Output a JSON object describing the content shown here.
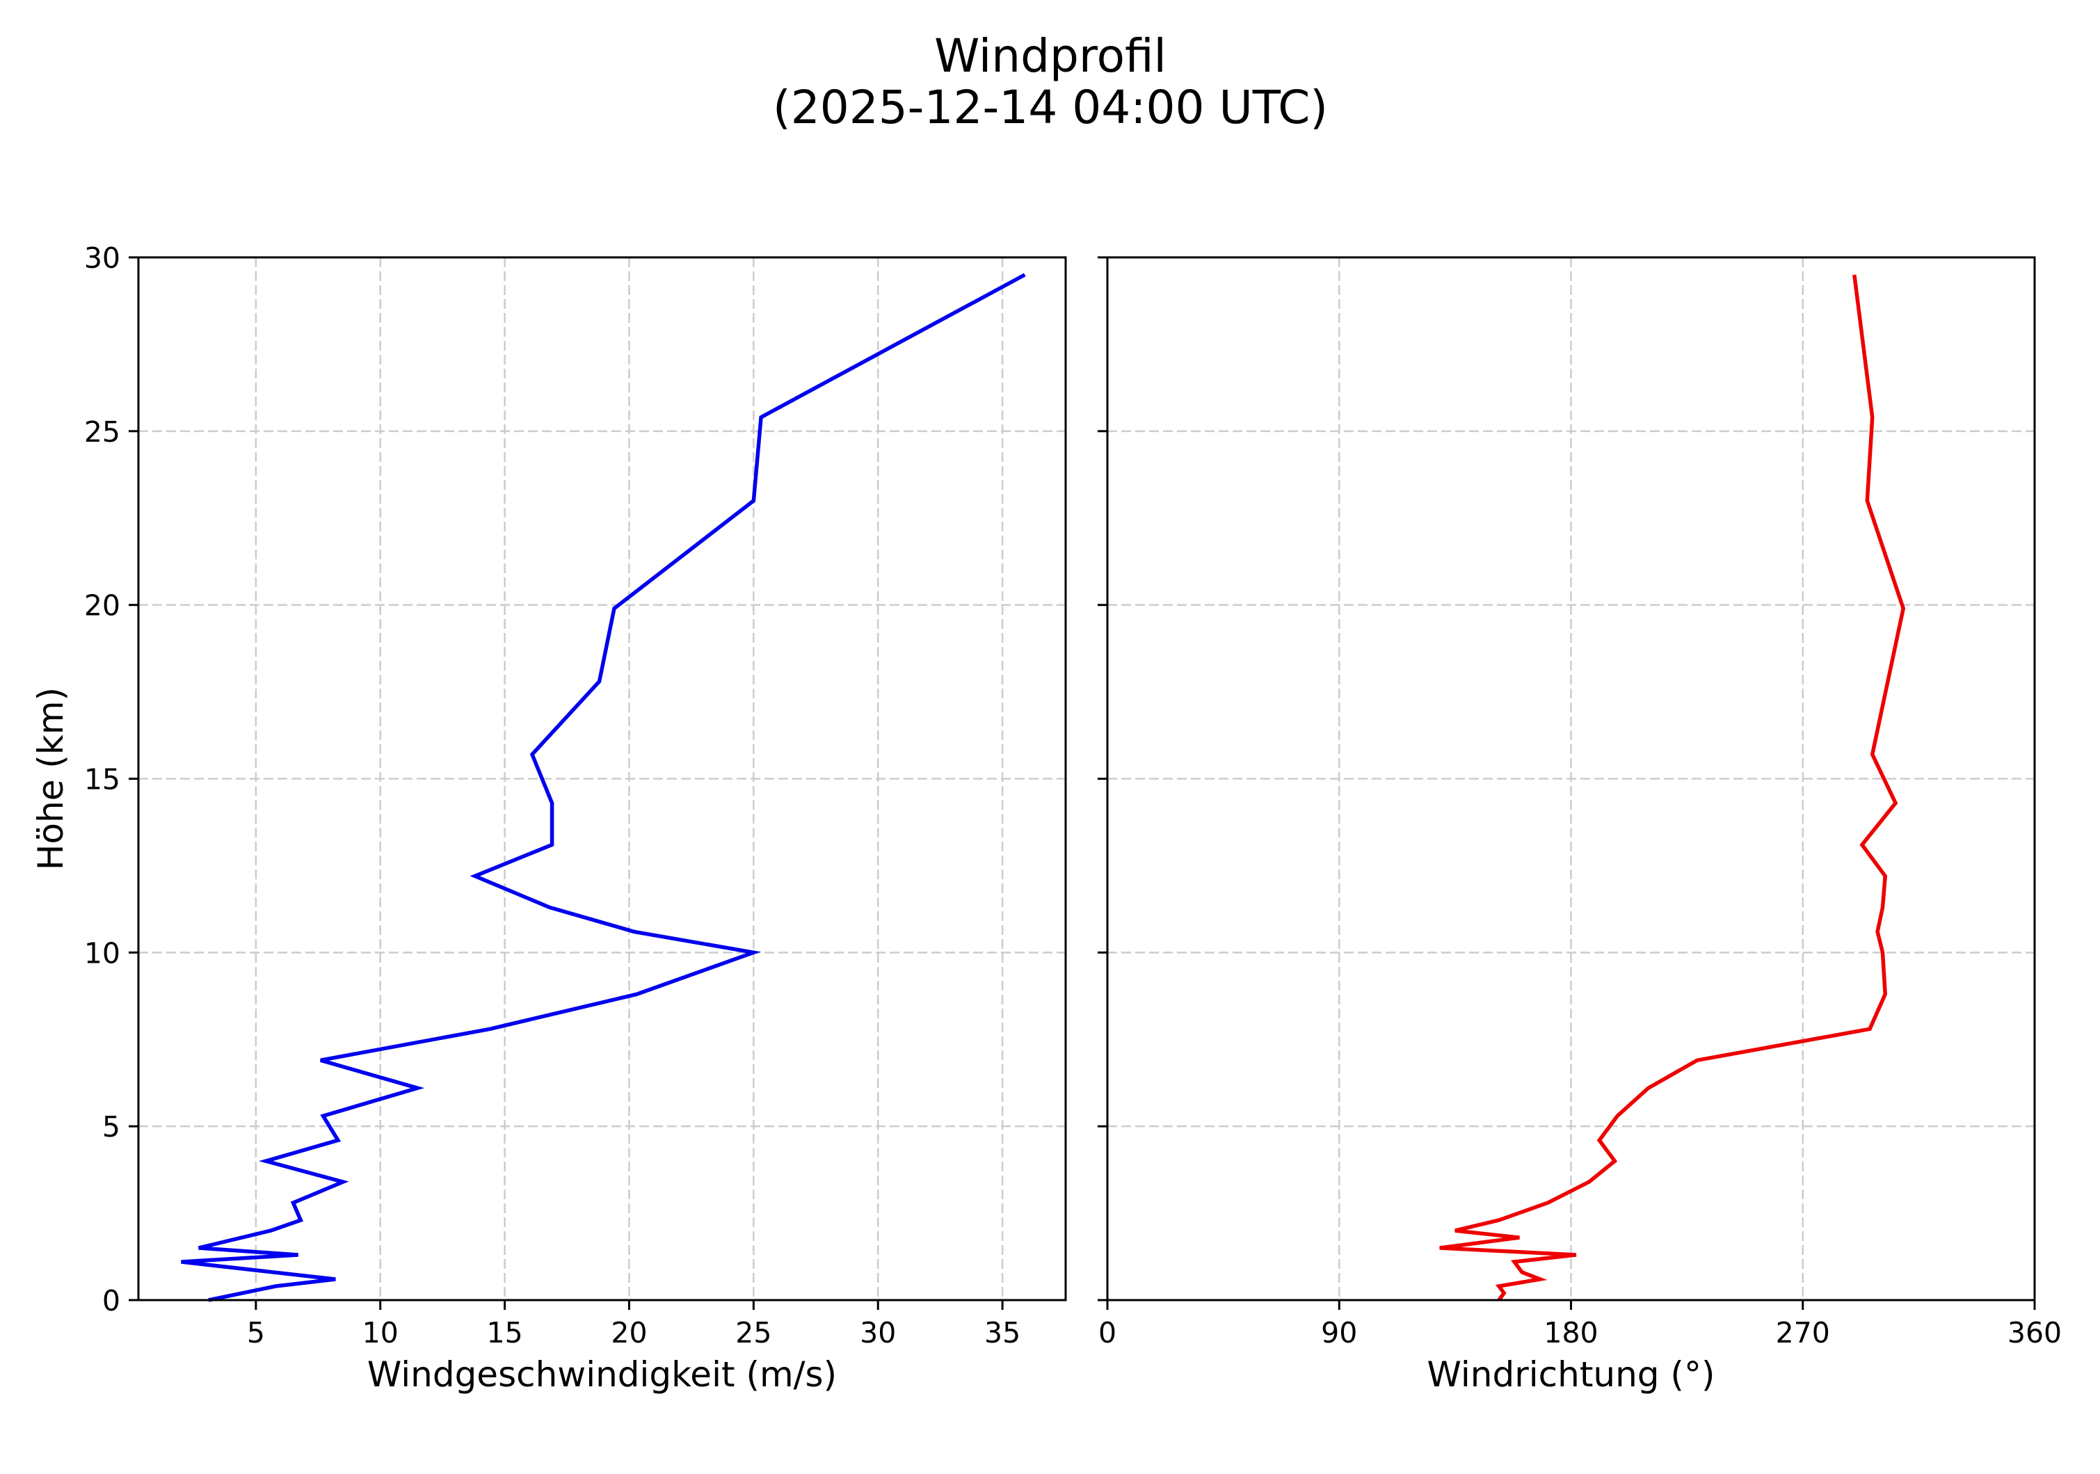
{
  "figure": {
    "title_line1": "Windprofil",
    "title_line2": "(2025-12-14 04:00 UTC)"
  },
  "chart_data": [
    {
      "type": "line",
      "panel": "left",
      "title": "",
      "xlabel": "Windgeschwindigkeit (m/s)",
      "ylabel": "Höhe (km)",
      "xlim": [
        0.28,
        37.54
      ],
      "ylim": [
        0,
        30
      ],
      "xticks": [
        5,
        10,
        15,
        20,
        25,
        30,
        35
      ],
      "xtick_labels": [
        "5",
        "10",
        "15",
        "20",
        "25",
        "30",
        "35"
      ],
      "yticks": [
        0,
        5,
        10,
        15,
        20,
        25,
        30
      ],
      "ytick_labels": [
        "0",
        "5",
        "10",
        "15",
        "20",
        "25",
        "30"
      ],
      "grid": true,
      "series": [
        {
          "name": "Windgeschwindigkeit",
          "color": "#0000ee",
          "x": [
            3.1,
            5.8,
            8.2,
            2.0,
            6.7,
            2.7,
            5.6,
            6.8,
            6.5,
            8.5,
            5.4,
            8.3,
            7.7,
            11.5,
            7.6,
            14.4,
            20.3,
            25.0,
            20.2,
            16.8,
            13.8,
            16.9,
            16.9,
            16.1,
            18.8,
            19.4,
            25.0,
            25.3,
            35.9
          ],
          "y": [
            0.0,
            0.4,
            0.6,
            1.1,
            1.3,
            1.5,
            2.0,
            2.3,
            2.8,
            3.4,
            4.0,
            4.6,
            5.3,
            6.1,
            6.9,
            7.8,
            8.8,
            10.0,
            10.6,
            11.3,
            12.2,
            13.1,
            14.3,
            15.7,
            17.8,
            19.9,
            23.0,
            25.4,
            29.5
          ]
        }
      ]
    },
    {
      "type": "line",
      "panel": "right",
      "title": "",
      "xlabel": "Windrichtung (°)",
      "ylabel": "",
      "xlim": [
        0,
        360
      ],
      "ylim": [
        0,
        30
      ],
      "xticks": [
        0,
        90,
        180,
        270,
        360
      ],
      "xtick_labels": [
        "0",
        "90",
        "180",
        "270",
        "360"
      ],
      "yticks": [
        0,
        5,
        10,
        15,
        20,
        25,
        30
      ],
      "ytick_labels": [],
      "grid": true,
      "series": [
        {
          "name": "Windrichtung",
          "color": "#ee0000",
          "x": [
            152,
            154,
            152,
            168,
            161,
            158,
            182,
            129,
            160,
            135,
            152,
            171,
            187,
            197,
            191,
            198,
            210,
            229,
            296,
            302,
            301,
            299,
            301,
            302,
            293,
            306,
            297,
            309,
            295,
            297,
            290
          ],
          "y": [
            0.0,
            0.2,
            0.4,
            0.6,
            0.8,
            1.1,
            1.3,
            1.5,
            1.8,
            2.0,
            2.3,
            2.8,
            3.4,
            4.0,
            4.6,
            5.3,
            6.1,
            6.9,
            7.8,
            8.8,
            10.0,
            10.6,
            11.3,
            12.2,
            13.1,
            14.3,
            15.7,
            19.9,
            23.0,
            25.4,
            29.5
          ]
        }
      ]
    }
  ]
}
